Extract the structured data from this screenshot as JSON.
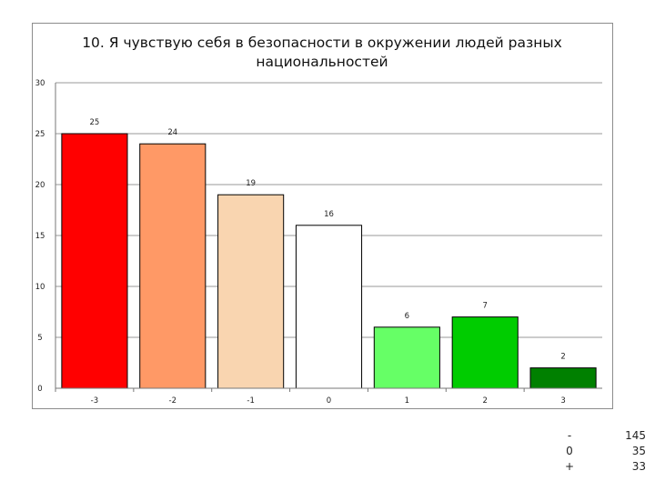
{
  "chart_data": {
    "type": "bar",
    "title": "10. Я чувствую себя в безопасности в окружении людей разных национальностей",
    "title_lines": [
      "10. Я чувствую себя в безопасности в окружении людей разных",
      "национальностей"
    ],
    "categories": [
      "-3",
      "-2",
      "-1",
      "0",
      "1",
      "2",
      "3"
    ],
    "values": [
      25,
      24,
      19,
      16,
      6,
      7,
      2
    ],
    "colors": [
      "#ff0000",
      "#ff9966",
      "#f9d5b0",
      "#ffffff",
      "#66ff66",
      "#00cc00",
      "#008000"
    ],
    "ylim": [
      0,
      30
    ],
    "yticks": [
      0,
      5,
      10,
      15,
      20,
      25,
      30
    ],
    "grid": true,
    "legend": "none",
    "xlabel": "",
    "ylabel": ""
  },
  "summary_table": [
    {
      "key": "-",
      "value": "145"
    },
    {
      "key": "0",
      "value": "35"
    },
    {
      "key": "+",
      "value": "33"
    }
  ]
}
